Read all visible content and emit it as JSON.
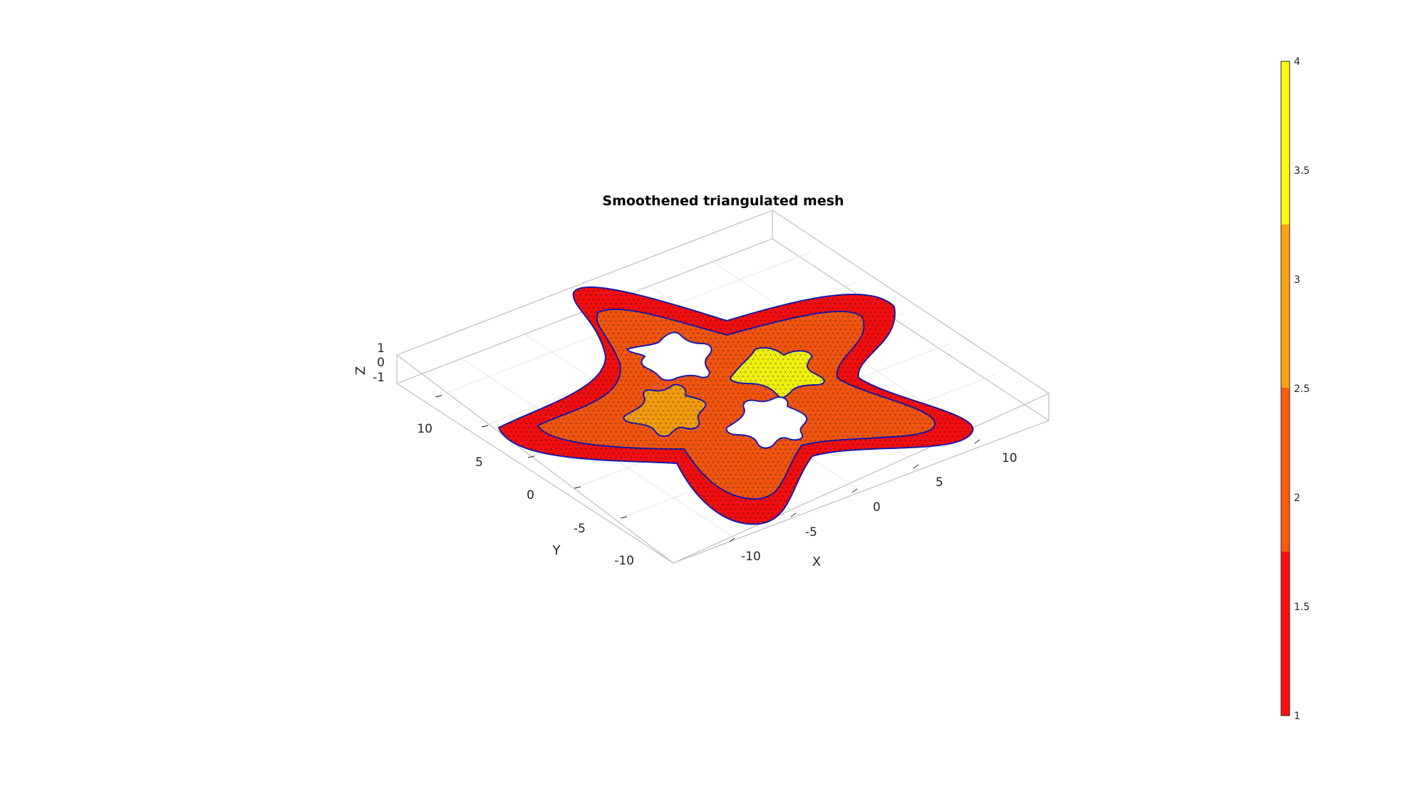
{
  "chart_data": {
    "type": "3d-mesh",
    "title": "Smoothened triangulated mesh",
    "xlabel": "X",
    "ylabel": "Y",
    "zlabel": "Z",
    "x_ticks": [
      "-10",
      "-5",
      "0",
      "5",
      "10"
    ],
    "y_ticks": [
      "-10",
      "-5",
      "0",
      "5",
      "10"
    ],
    "z_ticks": [
      "-1",
      "0",
      "1"
    ],
    "colorbar": {
      "min": 1,
      "max": 4,
      "ticks": [
        "1",
        "1.5",
        "2",
        "2.5",
        "3",
        "3.5",
        "4"
      ],
      "levels": [
        {
          "value": 1,
          "color": "#ff1010"
        },
        {
          "value": 2,
          "color": "#ff5a10"
        },
        {
          "value": 3,
          "color": "#ffa510"
        },
        {
          "value": 4,
          "color": "#ffff10"
        }
      ]
    },
    "regions": [
      {
        "label": 1,
        "color": "#ff1010"
      },
      {
        "label": 2,
        "color": "#ff5a10"
      },
      {
        "label": 3,
        "color": "#ffa510"
      },
      {
        "label": 4,
        "color": "#ffff10"
      }
    ],
    "grid": true,
    "edge_color": "#1a1ab0"
  }
}
